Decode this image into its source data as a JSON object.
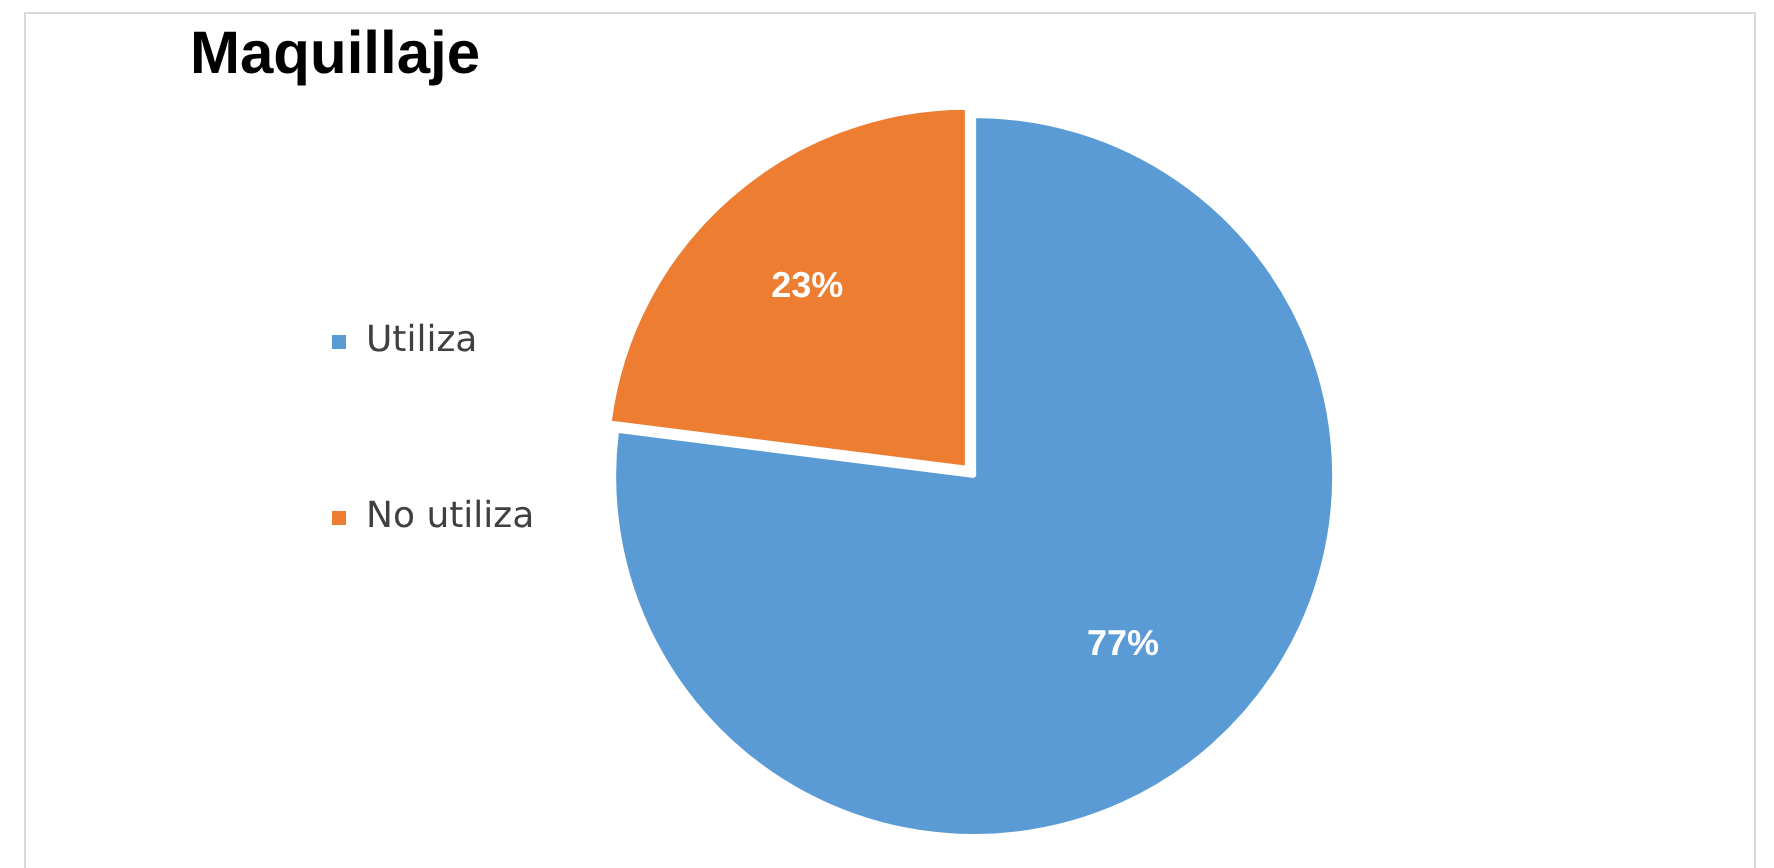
{
  "chart_data": {
    "type": "pie",
    "title": "Maquillaje",
    "categories": [
      "Utiliza",
      "No utiliza"
    ],
    "values": [
      77,
      23
    ],
    "colors": [
      "#5b9bd5",
      "#ed7d31"
    ],
    "value_labels": [
      "77%",
      "23%"
    ],
    "legend": "left"
  }
}
